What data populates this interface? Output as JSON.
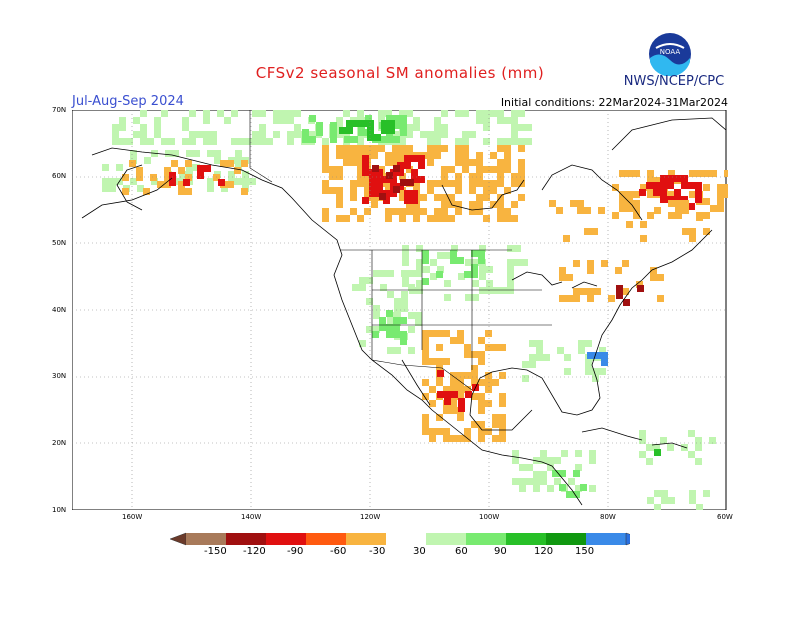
{
  "title": "CFSv2 seasonal SM anomalies (mm)",
  "season": "Jul-Aug-Sep 2024",
  "initial_conditions": "Initial conditions: 22Mar2024-31Mar2024",
  "agency": "NWS/NCEP/CPC",
  "logo_text": "NOAA",
  "lat_labels": [
    "70N",
    "60N",
    "50N",
    "40N",
    "30N",
    "20N",
    "10N"
  ],
  "lon_labels": [
    "160W",
    "140W",
    "120W",
    "100W",
    "80W",
    "60W"
  ],
  "colorbar": {
    "labels": [
      "-150",
      "-120",
      "-90",
      "-60",
      "-30",
      "30",
      "60",
      "90",
      "120",
      "150"
    ],
    "colors": [
      "#6b3a2a",
      "#a87a5a",
      "#a01010",
      "#e01010",
      "#ff5a10",
      "#f8b440",
      "#ffffff",
      "#c0f5b0",
      "#78ea70",
      "#28c028",
      "#109810",
      "#3a8ae8",
      "#2a70e0"
    ]
  },
  "colors": {
    "dry_strong": "#a01010",
    "dry": "#e01010",
    "dry_mid": "#ff5a10",
    "dry_light": "#f8b440",
    "wet_light": "#c0f5b0",
    "wet": "#78ea70",
    "wet_mid": "#28c028",
    "wet_strong": "#109810",
    "very_wet": "#3a8ae8"
  }
}
